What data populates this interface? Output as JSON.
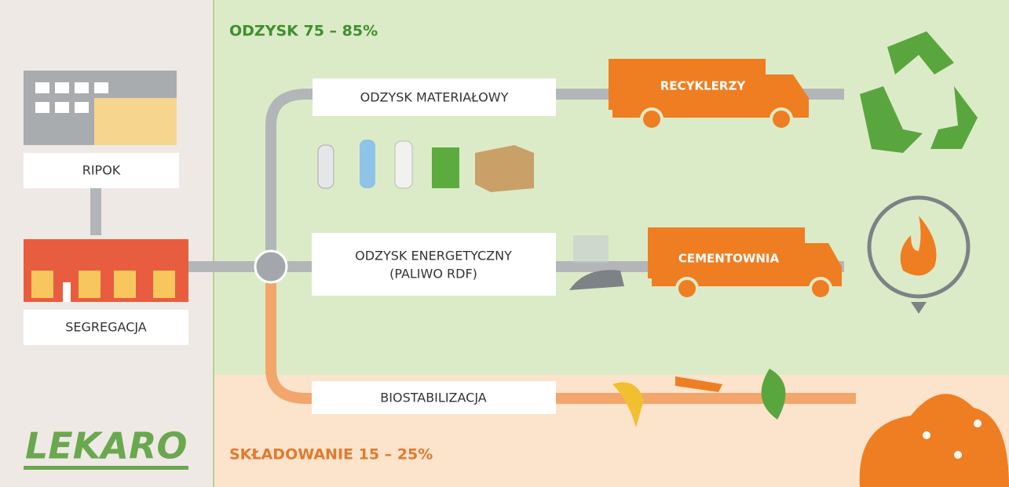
{
  "header": {
    "recovery": "ODZYSK 75 – 85%",
    "landfill": "SKŁADOWANIE 15 – 25%"
  },
  "left": {
    "ripok": "RIPOK",
    "segregation": "SEGREGACJA",
    "logo": "LEKARO"
  },
  "paths": {
    "material": "ODZYSK MATERIAŁOWY",
    "energy": "ODZYSK ENERGETYCZNY",
    "energy_note": "(PALIWO RDF)",
    "bio": "BIOSTABILIZACJA"
  },
  "trucks": {
    "recyclers": "RECYKLERZY",
    "cement": "CEMENTOWNIA"
  }
}
